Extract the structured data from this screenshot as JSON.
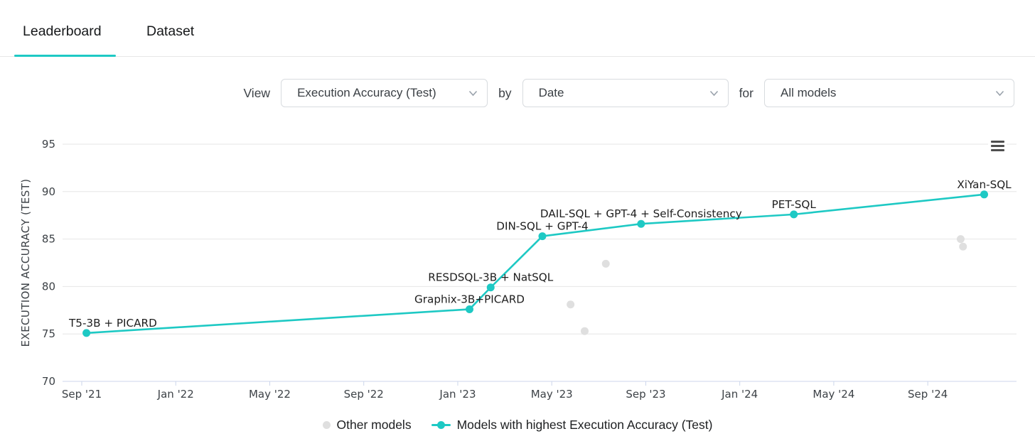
{
  "tabs": [
    {
      "label": "Leaderboard",
      "active": true
    },
    {
      "label": "Dataset",
      "active": false
    }
  ],
  "filters": {
    "view_label": "View",
    "view_value": "Execution Accuracy (Test)",
    "by_label": "by",
    "by_value": "Date",
    "for_label": "for",
    "for_value": "All models"
  },
  "colors": {
    "accent": "#1EC9C4",
    "highlight_series": "#1EC9C4",
    "other_models": "#DFDFDF",
    "gridline": "#E6E6E6",
    "axis_line": "#CCD6EB",
    "axis_text": "#3D4247",
    "label_text": "#1E1E1E"
  },
  "legend": [
    {
      "label": "Other models",
      "marker": "dot",
      "color": "#DFDFDF"
    },
    {
      "label": "Models with highest Execution Accuracy (Test)",
      "marker": "line-dot",
      "color": "#1EC9C4"
    }
  ],
  "chart_data": {
    "type": "line",
    "title": "",
    "xlabel": "",
    "ylabel": "EXECUTION ACCURACY (TEST)",
    "ylim": [
      70,
      95
    ],
    "y_ticks": [
      70,
      75,
      80,
      85,
      90,
      95
    ],
    "grid": "horizontal",
    "legend_position": "bottom",
    "x_axis_start": "Sep 2021",
    "x_ticks": [
      {
        "label": "Sep '21",
        "month": 0
      },
      {
        "label": "Jan '22",
        "month": 4
      },
      {
        "label": "May '22",
        "month": 8
      },
      {
        "label": "Sep '22",
        "month": 12
      },
      {
        "label": "Jan '23",
        "month": 16
      },
      {
        "label": "May '23",
        "month": 20
      },
      {
        "label": "Sep '23",
        "month": 24
      },
      {
        "label": "Jan '24",
        "month": 28
      },
      {
        "label": "May '24",
        "month": 32
      },
      {
        "label": "Sep '24",
        "month": 36
      }
    ],
    "series": [
      {
        "name": "Other models",
        "type": "scatter",
        "color": "#DFDFDF",
        "points": [
          {
            "month": 20.8,
            "value": 78.1,
            "date": "May 2023"
          },
          {
            "month": 21.4,
            "value": 75.3,
            "date": "Jun 2023"
          },
          {
            "month": 22.3,
            "value": 82.4,
            "date": "Jul 2023"
          },
          {
            "month": 37.4,
            "value": 85.0,
            "date": "Oct 2024"
          },
          {
            "month": 37.5,
            "value": 84.2,
            "date": "Oct 2024"
          }
        ]
      },
      {
        "name": "Models with highest Execution Accuracy (Test)",
        "type": "line",
        "color": "#1EC9C4",
        "points": [
          {
            "label": "T5-3B + PICARD",
            "month": 0.2,
            "value": 75.1,
            "date": "Sep 2021"
          },
          {
            "label": "Graphix-3B+PICARD",
            "month": 16.5,
            "value": 77.6,
            "date": "Jan 2023"
          },
          {
            "label": "RESDSQL-3B + NatSQL",
            "month": 17.4,
            "value": 79.9,
            "date": "Feb 2023"
          },
          {
            "label": "DIN-SQL + GPT-4",
            "month": 19.6,
            "value": 85.3,
            "date": "Apr 2023"
          },
          {
            "label": "DAIL-SQL + GPT-4 + Self-Consistency",
            "month": 23.8,
            "value": 86.6,
            "date": "Aug 2023"
          },
          {
            "label": "PET-SQL",
            "month": 30.3,
            "value": 87.6,
            "date": "Mar 2024"
          },
          {
            "label": "XiYan-SQL",
            "month": 38.4,
            "value": 89.7,
            "date": "Nov 2024"
          }
        ]
      }
    ]
  }
}
